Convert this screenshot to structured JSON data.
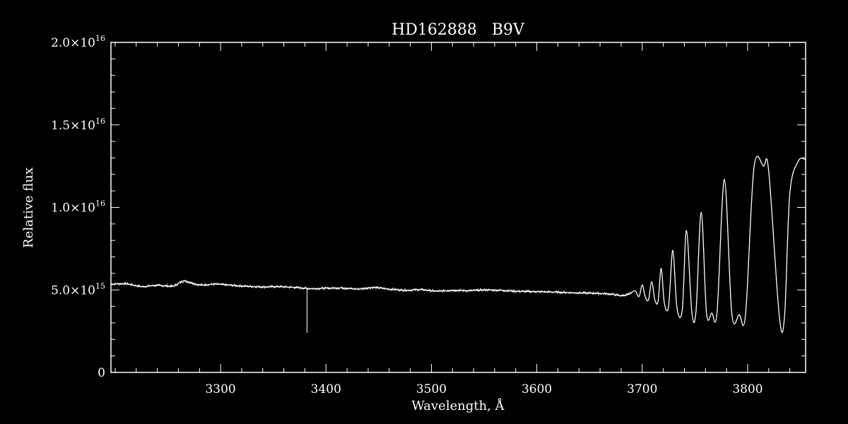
{
  "chart_data": {
    "type": "line",
    "title": "HD162888   B9V",
    "xlabel": "Wavelength, Å",
    "ylabel": "Relative flux",
    "xlim": [
      3196,
      3855
    ],
    "ylim": [
      0,
      2e+16
    ],
    "grid": false,
    "x_ticks": [
      {
        "value": 3300,
        "label": "3300"
      },
      {
        "value": 3400,
        "label": "3400"
      },
      {
        "value": 3500,
        "label": "3500"
      },
      {
        "value": 3600,
        "label": "3600"
      },
      {
        "value": 3700,
        "label": "3700"
      },
      {
        "value": 3800,
        "label": "3800"
      }
    ],
    "y_ticks": [
      {
        "value": 0,
        "mantissa": "0",
        "exponent": ""
      },
      {
        "value": 5000000000000000.0,
        "mantissa": "5.0×10",
        "exponent": "15"
      },
      {
        "value": 1e+16,
        "mantissa": "1.0×10",
        "exponent": "16"
      },
      {
        "value": 1.5e+16,
        "mantissa": "1.5×10",
        "exponent": "16"
      },
      {
        "value": 2e+16,
        "mantissa": "2.0×10",
        "exponent": "16"
      }
    ],
    "series": [
      {
        "color": "#ffffff",
        "x": [
          3196,
          3210,
          3225,
          3240,
          3255,
          3265,
          3280,
          3295,
          3310,
          3325,
          3340,
          3355,
          3370,
          3385,
          3400,
          3415,
          3430,
          3445,
          3460,
          3475,
          3490,
          3505,
          3520,
          3535,
          3550,
          3565,
          3580,
          3595,
          3610,
          3625,
          3640,
          3655,
          3670,
          3680,
          3688,
          3693,
          3697,
          3700,
          3703,
          3706,
          3709,
          3712,
          3715,
          3718,
          3721,
          3725,
          3729,
          3733,
          3738,
          3742,
          3747,
          3751,
          3756,
          3761,
          3766,
          3771,
          3778,
          3785,
          3792,
          3798,
          3806,
          3815,
          3820,
          3830,
          3835,
          3840,
          3848,
          3855
        ],
        "y": [
          5350000000000000.0,
          5380000000000000.0,
          5200000000000000.0,
          5280000000000000.0,
          5220000000000000.0,
          5550000000000000.0,
          5300000000000000.0,
          5350000000000000.0,
          5280000000000000.0,
          5220000000000000.0,
          5180000000000000.0,
          5200000000000000.0,
          5150000000000000.0,
          5080000000000000.0,
          5100000000000000.0,
          5120000000000000.0,
          5050000000000000.0,
          5150000000000000.0,
          5050000000000000.0,
          4980000000000000.0,
          5020000000000000.0,
          4920000000000000.0,
          4980000000000000.0,
          4950000000000000.0,
          5000000000000000.0,
          4980000000000000.0,
          4920000000000000.0,
          4900000000000000.0,
          4880000000000000.0,
          4850000000000000.0,
          4820000000000000.0,
          4800000000000000.0,
          4750000000000000.0,
          4650000000000000.0,
          4750000000000000.0,
          4950000000000000.0,
          4600000000000000.0,
          5300000000000000.0,
          4550000000000000.0,
          4400000000000000.0,
          5500000000000000.0,
          4400000000000000.0,
          4300000000000000.0,
          6300000000000000.0,
          4200000000000000.0,
          4000000000000000.0,
          7400000000000000.0,
          3900000000000000.0,
          3800000000000000.0,
          8600000000000000.0,
          3700000000000000.0,
          3700000000000000.0,
          9700000000000000.0,
          3600000000000000.0,
          3600000000000000.0,
          3650000000000000.0,
          1.17e+16,
          3550000000000000.0,
          3500000000000000.0,
          3500000000000000.0,
          1.24e+16,
          1.25e+16,
          1.22e+16,
          3450000000000000.0,
          3400000000000000.0,
          1.08e+16,
          1.28e+16,
          1.29e+16
        ]
      }
    ],
    "annotations": [
      {
        "type": "spike",
        "x": 3382,
        "y_from": 5050000000000000.0,
        "y_to": 2400000000000000.0
      }
    ]
  }
}
